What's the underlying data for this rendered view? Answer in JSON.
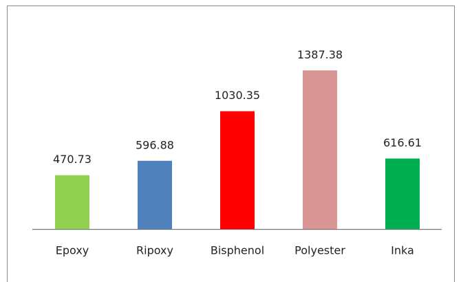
{
  "chart_data": {
    "type": "bar",
    "categories": [
      "Epoxy",
      "Ripoxy",
      "Bisphenol",
      "Polyester",
      "Inka"
    ],
    "values": [
      470.73,
      596.88,
      1030.35,
      1387.38,
      616.61
    ],
    "colors": [
      "#92d050",
      "#4f81bd",
      "#ff0000",
      "#d99694",
      "#00b050"
    ],
    "ylim": [
      0,
      1600
    ]
  }
}
